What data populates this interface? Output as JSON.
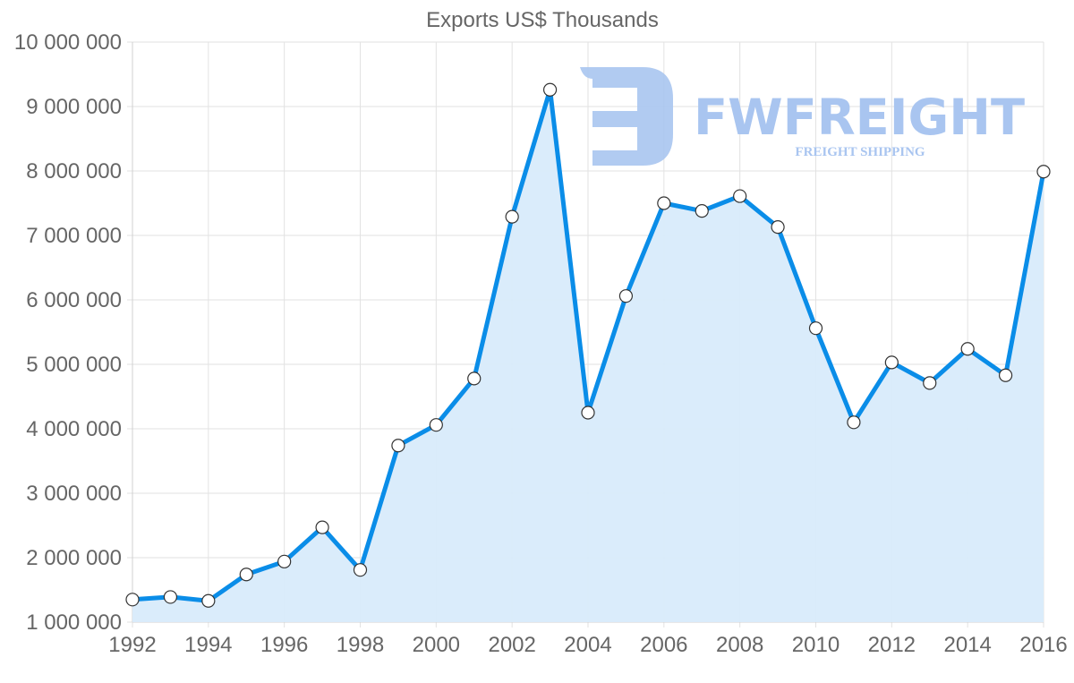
{
  "chart_data": {
    "type": "area",
    "title": "Exports US$ Thousands",
    "xlabel": "",
    "ylabel": "",
    "x": [
      1992,
      1993,
      1994,
      1995,
      1996,
      1997,
      1998,
      1999,
      2000,
      2001,
      2002,
      2003,
      2004,
      2005,
      2006,
      2007,
      2008,
      2009,
      2010,
      2011,
      2012,
      2013,
      2014,
      2015,
      2016
    ],
    "series": [
      {
        "name": "Exports US$ Thousands",
        "values": [
          1350000,
          1390000,
          1330000,
          1740000,
          1940000,
          2470000,
          1810000,
          3740000,
          4060000,
          4780000,
          7290000,
          9260000,
          4250000,
          6060000,
          7500000,
          7380000,
          7610000,
          7130000,
          5560000,
          4100000,
          5030000,
          4710000,
          5240000,
          4830000,
          7990000
        ],
        "line_color": "#0a8de8",
        "fill_color": "#d8ebfb"
      }
    ],
    "ylim": [
      1000000,
      10000000
    ],
    "xlim": [
      1992,
      2016
    ],
    "y_ticks": [
      "1 000 000",
      "2 000 000",
      "3 000 000",
      "4 000 000",
      "5 000 000",
      "6 000 000",
      "7 000 000",
      "8 000 000",
      "9 000 000",
      "10 000 000"
    ],
    "y_tick_values": [
      1000000,
      2000000,
      3000000,
      4000000,
      5000000,
      6000000,
      7000000,
      8000000,
      9000000,
      10000000
    ],
    "x_ticks": [
      "1992",
      "1994",
      "1996",
      "1998",
      "2000",
      "2002",
      "2004",
      "2006",
      "2008",
      "2010",
      "2012",
      "2014",
      "2016"
    ],
    "grid": true,
    "legend": "none"
  },
  "watermark": {
    "brand": "FWFREIGHT",
    "tagline": "FREIGHT SHIPPING",
    "color": "#a9c5f0"
  }
}
